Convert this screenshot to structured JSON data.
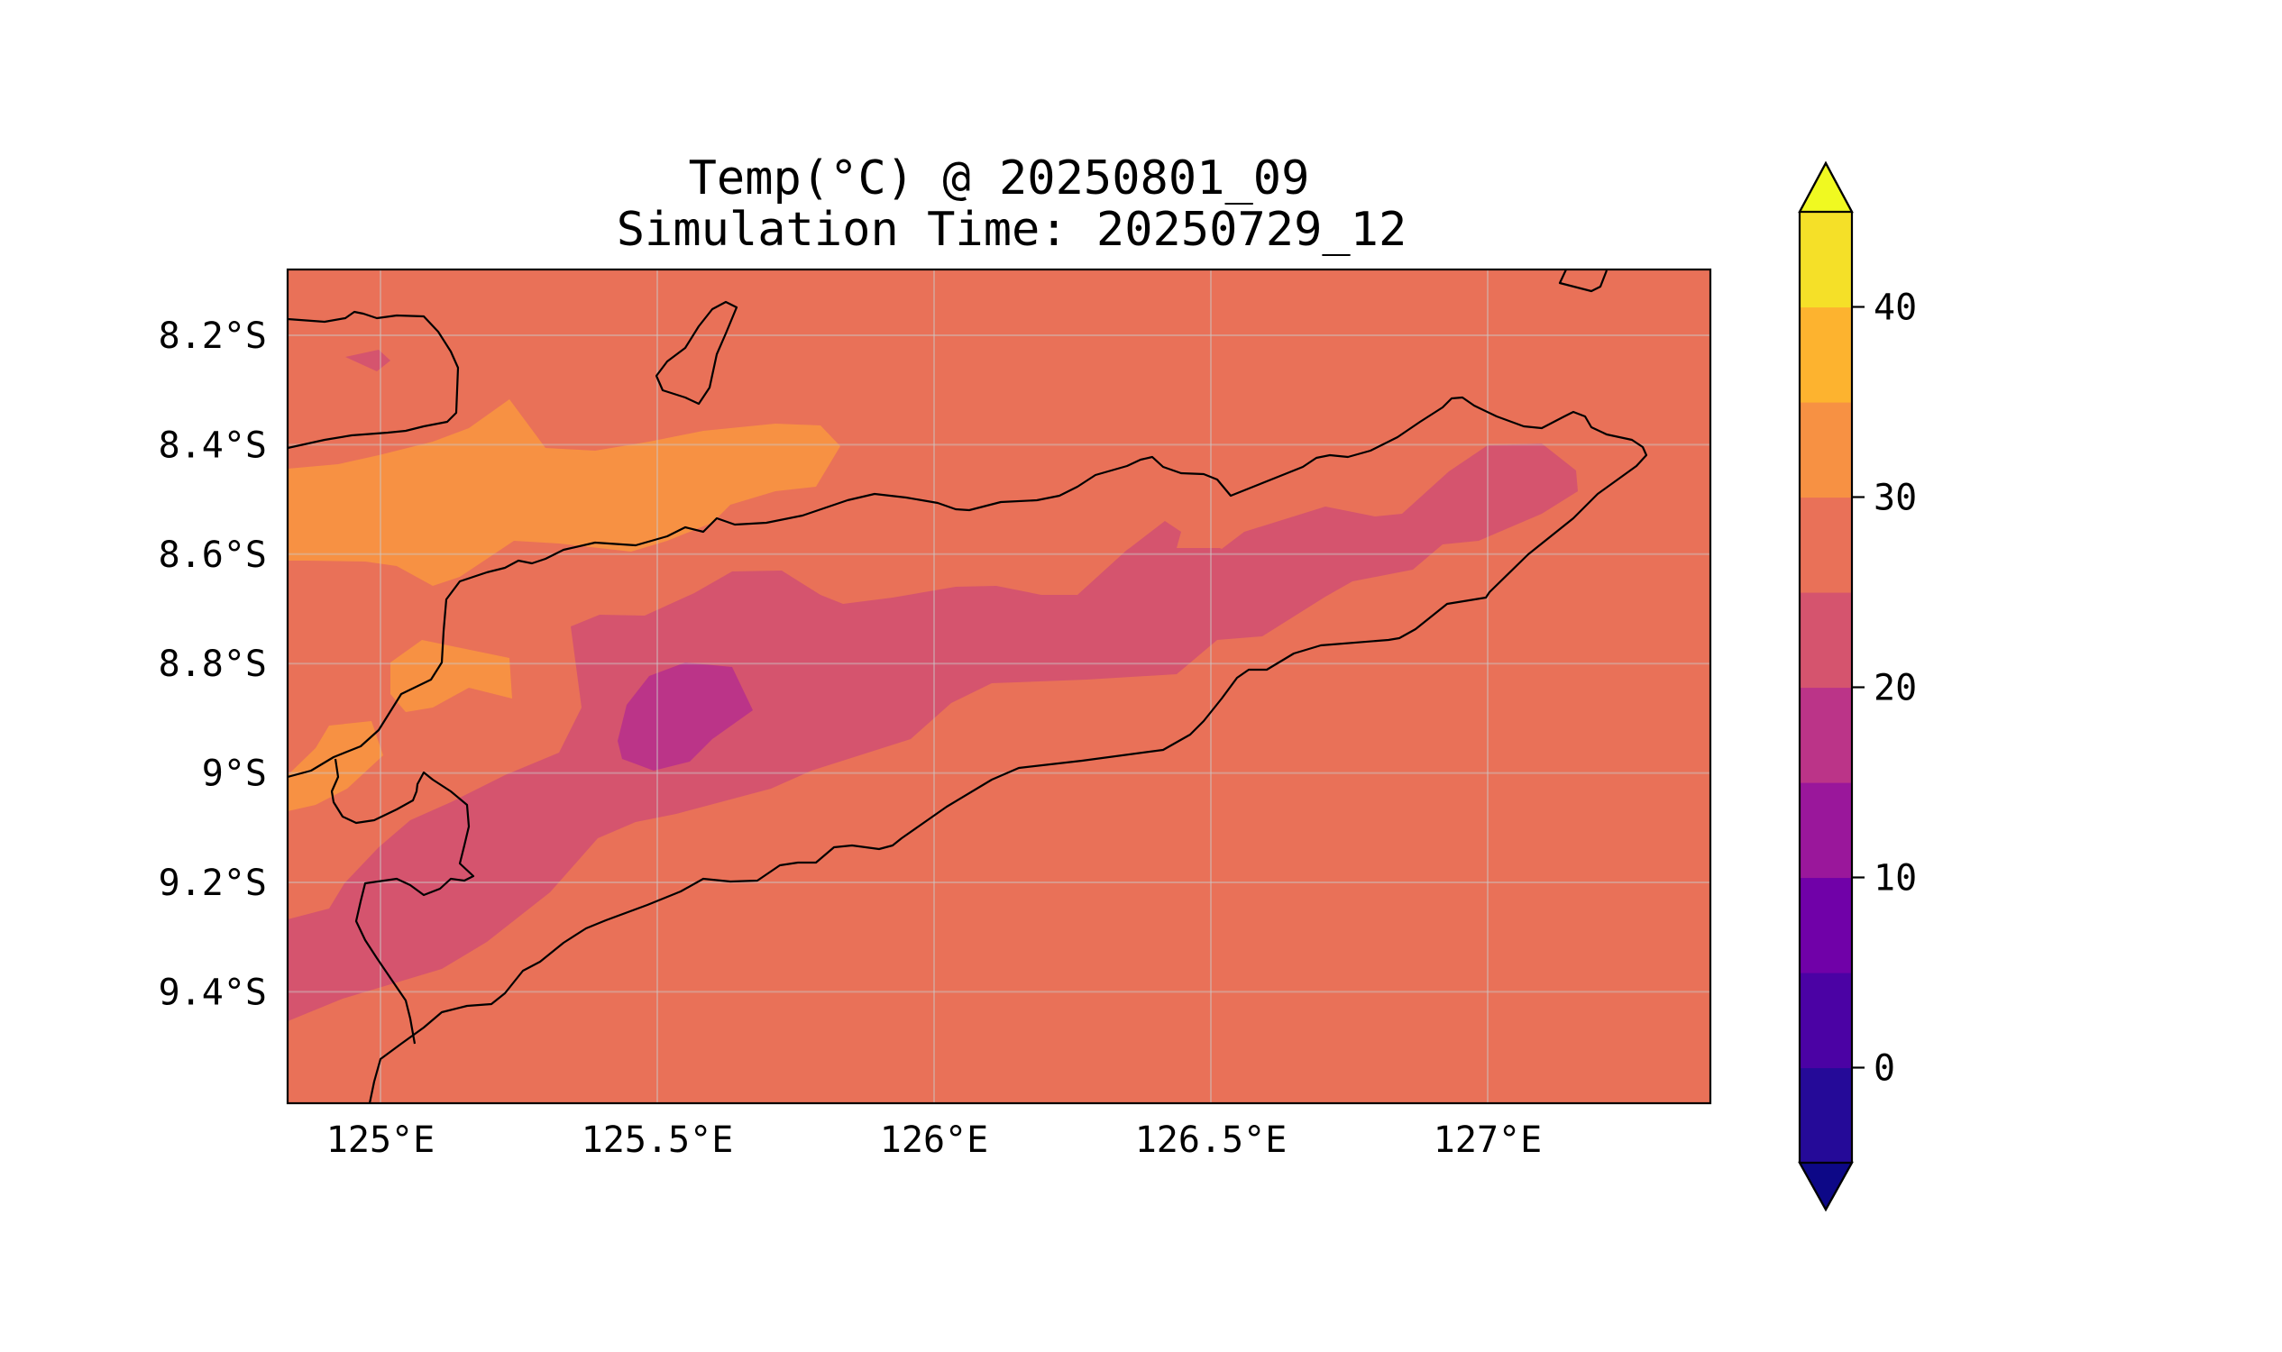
{
  "title": {
    "line1": "Temp(°C) @ 20250801_09",
    "line2": "Simulation Time: 20250729_12"
  },
  "map": {
    "lon_ticks": [
      {
        "value": 125.0,
        "label": "125°E"
      },
      {
        "value": 125.5,
        "label": "125.5°E"
      },
      {
        "value": 126.0,
        "label": "126°E"
      },
      {
        "value": 126.5,
        "label": "126.5°E"
      },
      {
        "value": 127.0,
        "label": "127°E"
      }
    ],
    "lat_ticks": [
      {
        "value": -8.2,
        "label": "8.2°S"
      },
      {
        "value": -8.4,
        "label": "8.4°S"
      },
      {
        "value": -8.6,
        "label": "8.6°S"
      },
      {
        "value": -8.8,
        "label": "8.8°S"
      },
      {
        "value": -9.0,
        "label": "9°S"
      },
      {
        "value": -9.2,
        "label": "9.2°S"
      },
      {
        "value": -9.4,
        "label": "9.4°S"
      }
    ],
    "gridlines": true
  },
  "colorbar": {
    "ticks": [
      {
        "value": 0,
        "label": "0"
      },
      {
        "value": 10,
        "label": "10"
      },
      {
        "value": 20,
        "label": "20"
      },
      {
        "value": 30,
        "label": "30"
      },
      {
        "value": 40,
        "label": "40"
      }
    ],
    "levels": [
      -5,
      0,
      5,
      10,
      15,
      20,
      25,
      30,
      35,
      40,
      45
    ],
    "colors": [
      "#250a98",
      "#4b02a4",
      "#7001a8",
      "#9a179b",
      "#bb3488",
      "#d5546e",
      "#e97158",
      "#f79143",
      "#fdb32f",
      "#f5e028"
    ],
    "under_color": "#0d0887",
    "over_color": "#f0f921",
    "extend": "both"
  },
  "colors": {
    "band_25_30": "#e97158",
    "band_30_35": "#f79143",
    "band_20_25": "#d5546e",
    "band_15_20": "#bb3488"
  }
}
